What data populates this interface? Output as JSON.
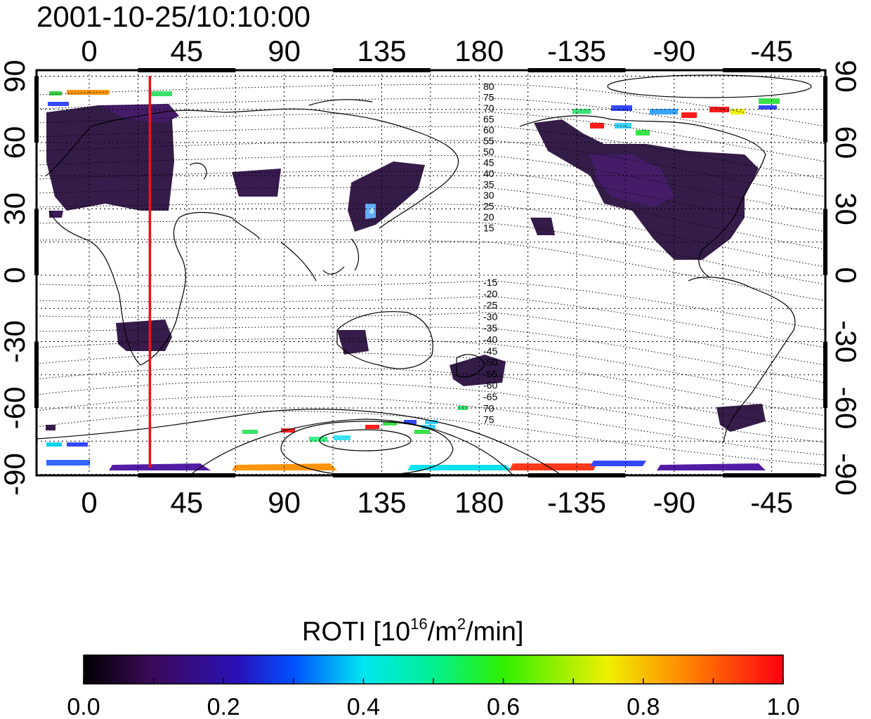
{
  "title": "2001-10-25/10:10:00",
  "map": {
    "top_lon_labels": [
      "0",
      "45",
      "90",
      "135",
      "180",
      "-135",
      "-90",
      "-45"
    ],
    "bottom_lon_labels": [
      "0",
      "45",
      "90",
      "135",
      "180",
      "-135",
      "-90",
      "-45"
    ],
    "left_lat_labels": [
      "90",
      "60",
      "30",
      "0",
      "-30",
      "-60",
      "-90"
    ],
    "right_lat_labels": [
      "90",
      "60",
      "30",
      "0",
      "-30",
      "-60",
      "-90"
    ],
    "marker_line_lon": 28,
    "marker_color": "#e8141c",
    "mlat_labels_north": [
      "80",
      "75",
      "70",
      "65",
      "60",
      "55",
      "50",
      "45",
      "40",
      "35",
      "30",
      "25",
      "20",
      "15"
    ],
    "mlat_labels_south": [
      "-15",
      "-20",
      "-25",
      "-30",
      "-35",
      "-40",
      "-45",
      "-50",
      "-55",
      "-60",
      "-65",
      "70",
      "75"
    ]
  },
  "colorbar": {
    "label_main": "ROTI  [10",
    "label_sup1": "16",
    "label_mid": "/m",
    "label_sup2": "2",
    "label_end": "/min]",
    "ticks": [
      "0.0",
      "0.2",
      "0.4",
      "0.6",
      "0.8",
      "1.0"
    ],
    "min": 0.0,
    "max": 1.0
  }
}
